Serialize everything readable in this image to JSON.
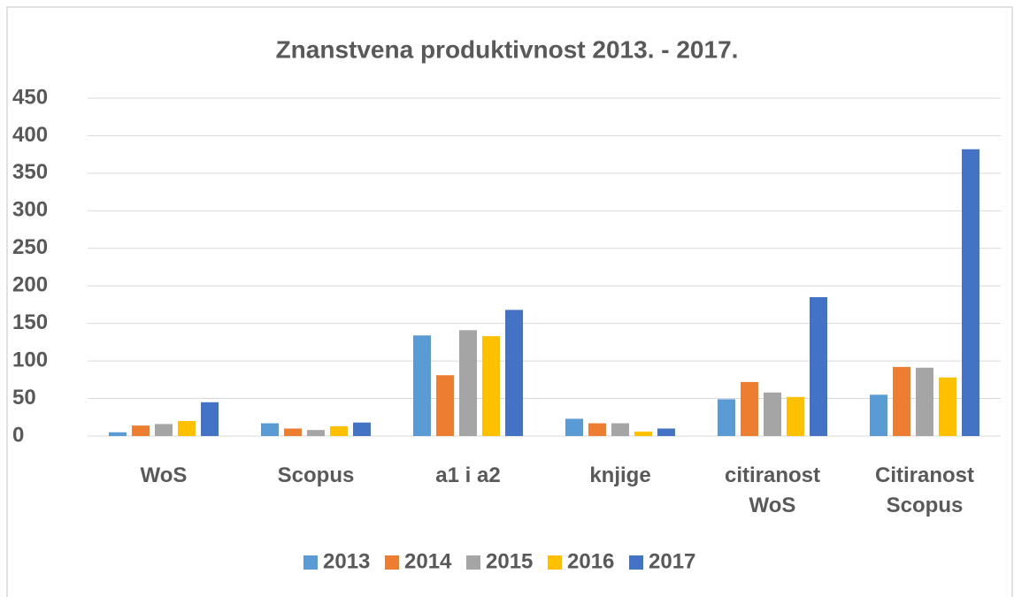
{
  "chart_data": {
    "type": "bar",
    "title": "Znanstvena produktivnost 2013. - 2017.",
    "categories": [
      "WoS",
      "Scopus",
      "a1 i a2",
      "knjige",
      "citiranost WoS",
      "Citiranost Scopus"
    ],
    "series": [
      {
        "name": "2013",
        "color": "#5b9bd5",
        "values": [
          5,
          17,
          134,
          23,
          49,
          55
        ]
      },
      {
        "name": "2014",
        "color": "#ed7d31",
        "values": [
          14,
          10,
          81,
          17,
          72,
          92
        ]
      },
      {
        "name": "2015",
        "color": "#a5a5a5",
        "values": [
          16,
          8,
          141,
          17,
          58,
          91
        ]
      },
      {
        "name": "2016",
        "color": "#ffc000",
        "values": [
          20,
          13,
          133,
          6,
          52,
          78
        ]
      },
      {
        "name": "2017",
        "color": "#4472c4",
        "values": [
          45,
          18,
          168,
          10,
          185,
          382
        ]
      }
    ],
    "ylim": [
      0,
      450
    ],
    "yticks": [
      0,
      50,
      100,
      150,
      200,
      250,
      300,
      350,
      400,
      450
    ],
    "grid": true,
    "legend": "bottom"
  }
}
